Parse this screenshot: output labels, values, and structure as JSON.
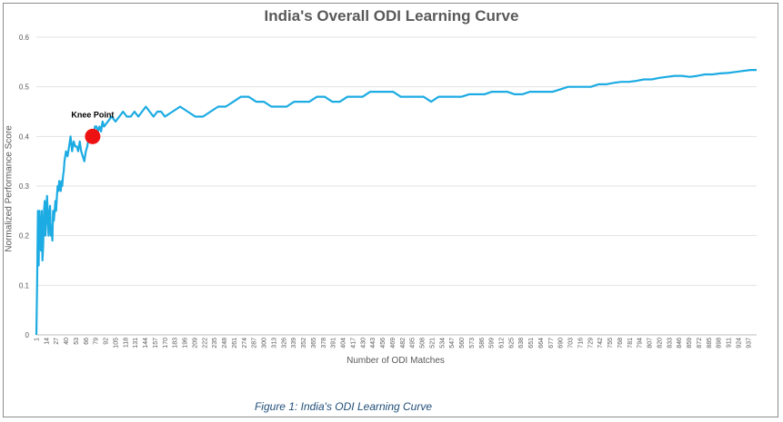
{
  "chart_data": {
    "type": "line",
    "title": "India's Overall ODI Learning Curve",
    "xlabel": "Number of ODI Matches",
    "ylabel": "Normalized Performance Score",
    "ylim": [
      0,
      0.6
    ],
    "yticks": [
      "0",
      "0.1",
      "0.2",
      "0.3",
      "0.4",
      "0.5",
      "0.6"
    ],
    "xlim": [
      1,
      948
    ],
    "xticks": [
      1,
      14,
      27,
      40,
      53,
      66,
      79,
      92,
      105,
      118,
      131,
      144,
      157,
      170,
      183,
      196,
      209,
      222,
      235,
      248,
      261,
      274,
      287,
      300,
      313,
      326,
      339,
      352,
      365,
      378,
      391,
      404,
      417,
      430,
      443,
      456,
      469,
      482,
      495,
      508,
      521,
      534,
      547,
      560,
      573,
      586,
      599,
      612,
      625,
      638,
      651,
      664,
      677,
      690,
      703,
      716,
      729,
      742,
      755,
      768,
      781,
      794,
      807,
      820,
      833,
      846,
      859,
      872,
      885,
      898,
      911,
      924,
      937
    ],
    "grid": true,
    "color": "#1cabe2",
    "series": [
      {
        "x": [
          1,
          2,
          3,
          4,
          5,
          6,
          7,
          8,
          9,
          10,
          11,
          12,
          13,
          14,
          15,
          16,
          17,
          18,
          19,
          20,
          21,
          22,
          23,
          24,
          25,
          26,
          27,
          28,
          29,
          30,
          31,
          32,
          33,
          34,
          35,
          36,
          37,
          38,
          40,
          42,
          44,
          46,
          48,
          50,
          52,
          54,
          56,
          58,
          60,
          62,
          64,
          66,
          68,
          70,
          72,
          74,
          76,
          78,
          80,
          82,
          84,
          86,
          88,
          90,
          95,
          100,
          105,
          110,
          115,
          120,
          125,
          130,
          135,
          140,
          145,
          150,
          155,
          160,
          165,
          170,
          180,
          190,
          200,
          210,
          220,
          230,
          240,
          250,
          260,
          270,
          280,
          290,
          300,
          310,
          320,
          330,
          340,
          350,
          360,
          370,
          380,
          390,
          400,
          410,
          420,
          430,
          440,
          450,
          460,
          470,
          480,
          490,
          500,
          510,
          520,
          530,
          540,
          550,
          560,
          570,
          580,
          590,
          600,
          610,
          620,
          630,
          640,
          650,
          660,
          670,
          680,
          690,
          700,
          710,
          720,
          730,
          740,
          750,
          760,
          770,
          780,
          790,
          800,
          810,
          820,
          830,
          840,
          850,
          860,
          870,
          880,
          890,
          900,
          910,
          920,
          930,
          940,
          948
        ],
        "y": [
          0,
          0.1,
          0.25,
          0.14,
          0.25,
          0.2,
          0.17,
          0.25,
          0.15,
          0.18,
          0.25,
          0.27,
          0.2,
          0.23,
          0.28,
          0.25,
          0.2,
          0.24,
          0.26,
          0.2,
          0.22,
          0.19,
          0.25,
          0.23,
          0.25,
          0.27,
          0.25,
          0.28,
          0.3,
          0.29,
          0.31,
          0.3,
          0.29,
          0.31,
          0.3,
          0.32,
          0.33,
          0.35,
          0.37,
          0.36,
          0.38,
          0.4,
          0.37,
          0.39,
          0.38,
          0.38,
          0.37,
          0.39,
          0.37,
          0.36,
          0.35,
          0.37,
          0.38,
          0.4,
          0.39,
          0.41,
          0.4,
          0.42,
          0.42,
          0.41,
          0.42,
          0.41,
          0.43,
          0.42,
          0.43,
          0.44,
          0.43,
          0.44,
          0.45,
          0.44,
          0.44,
          0.45,
          0.44,
          0.45,
          0.46,
          0.45,
          0.44,
          0.45,
          0.45,
          0.44,
          0.45,
          0.46,
          0.45,
          0.44,
          0.44,
          0.45,
          0.46,
          0.46,
          0.47,
          0.48,
          0.48,
          0.47,
          0.47,
          0.46,
          0.46,
          0.46,
          0.47,
          0.47,
          0.47,
          0.48,
          0.48,
          0.47,
          0.47,
          0.48,
          0.48,
          0.48,
          0.49,
          0.49,
          0.49,
          0.49,
          0.48,
          0.48,
          0.48,
          0.48,
          0.47,
          0.48,
          0.48,
          0.48,
          0.48,
          0.485,
          0.485,
          0.485,
          0.49,
          0.49,
          0.49,
          0.485,
          0.485,
          0.49,
          0.49,
          0.49,
          0.49,
          0.495,
          0.5,
          0.5,
          0.5,
          0.5,
          0.505,
          0.505,
          0.508,
          0.51,
          0.51,
          0.512,
          0.515,
          0.515,
          0.518,
          0.52,
          0.522,
          0.522,
          0.52,
          0.522,
          0.525,
          0.525,
          0.527,
          0.528,
          0.53,
          0.532,
          0.534,
          0.534
        ]
      }
    ],
    "annotations": [
      {
        "label": "Knee Point",
        "x": 75,
        "y": 0.4,
        "marker_color": "#ee1111"
      }
    ]
  },
  "caption": "Figure 1: India's ODI Learning Curve"
}
